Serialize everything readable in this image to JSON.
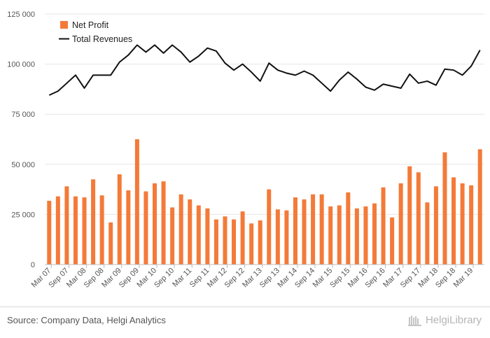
{
  "chart_data": {
    "type": "bar+line",
    "ylim": [
      0,
      125000
    ],
    "yticks": [
      0,
      25000,
      50000,
      75000,
      100000,
      125000
    ],
    "ytick_labels": [
      "0",
      "25 000",
      "50 000",
      "75 000",
      "100 000",
      "125 000"
    ],
    "grid": true,
    "legend_position": "top-left",
    "categories": [
      "Mar 07",
      "Jun 07",
      "Sep 07",
      "Dec 07",
      "Mar 08",
      "Jun 08",
      "Sep 08",
      "Dec 08",
      "Mar 09",
      "Jun 09",
      "Sep 09",
      "Dec 09",
      "Mar 10",
      "Jun 10",
      "Sep 10",
      "Dec 10",
      "Mar 11",
      "Jun 11",
      "Sep 11",
      "Dec 11",
      "Mar 12",
      "Jun 12",
      "Sep 12",
      "Dec 12",
      "Mar 13",
      "Jun 13",
      "Sep 13",
      "Dec 13",
      "Mar 14",
      "Jun 14",
      "Sep 14",
      "Dec 14",
      "Mar 15",
      "Jun 15",
      "Sep 15",
      "Dec 15",
      "Mar 16",
      "Jun 16",
      "Sep 16",
      "Dec 16",
      "Mar 17",
      "Jun 17",
      "Sep 17",
      "Dec 17",
      "Mar 18",
      "Jun 18",
      "Sep 18",
      "Dec 18",
      "Mar 19",
      "Jun 19"
    ],
    "xtick_labels": [
      "Mar 07",
      "Sep 07",
      "Mar 08",
      "Sep 08",
      "Mar 09",
      "Sep 09",
      "Mar 10",
      "Sep 10",
      "Mar 11",
      "Sep 11",
      "Mar 12",
      "Sep 12",
      "Mar 13",
      "Sep 13",
      "Mar 14",
      "Sep 14",
      "Mar 15",
      "Sep 15",
      "Mar 16",
      "Sep 16",
      "Mar 17",
      "Sep 17",
      "Mar 18",
      "Sep 18",
      "Mar 19"
    ],
    "series": [
      {
        "name": "Net Profit",
        "type": "bar",
        "color": "#f47a38",
        "values": [
          31800,
          34000,
          39000,
          34000,
          33500,
          42500,
          34500,
          21000,
          45000,
          37000,
          62500,
          36500,
          40500,
          41500,
          28500,
          35000,
          32500,
          29500,
          28000,
          22500,
          24000,
          22500,
          26500,
          20500,
          22000,
          37500,
          27500,
          27000,
          33500,
          32500,
          35000,
          35000,
          29000,
          29500,
          36000,
          28000,
          29000,
          30500,
          38500,
          23500,
          40500,
          49000,
          46000,
          31000,
          39000,
          56000,
          43500,
          40500,
          39500,
          57500
        ]
      },
      {
        "name": "Total Revenues",
        "type": "line",
        "color": "#111111",
        "values": [
          84500,
          86500,
          90500,
          94500,
          88000,
          94500,
          94500,
          94500,
          101000,
          104500,
          109500,
          106000,
          109500,
          105500,
          109500,
          106000,
          101000,
          104000,
          108000,
          106500,
          100500,
          97000,
          100000,
          96000,
          91500,
          100500,
          97000,
          95500,
          94500,
          96500,
          94500,
          90500,
          86500,
          92000,
          96000,
          92500,
          88500,
          87000,
          90000,
          89000,
          88000,
          95000,
          90500,
          91500,
          89500,
          97500,
          97000,
          94500,
          99000,
          107000
        ]
      }
    ]
  },
  "footer": {
    "source": "Source: Company Data, Helgi Analytics",
    "brand": "HelgiLibrary"
  }
}
